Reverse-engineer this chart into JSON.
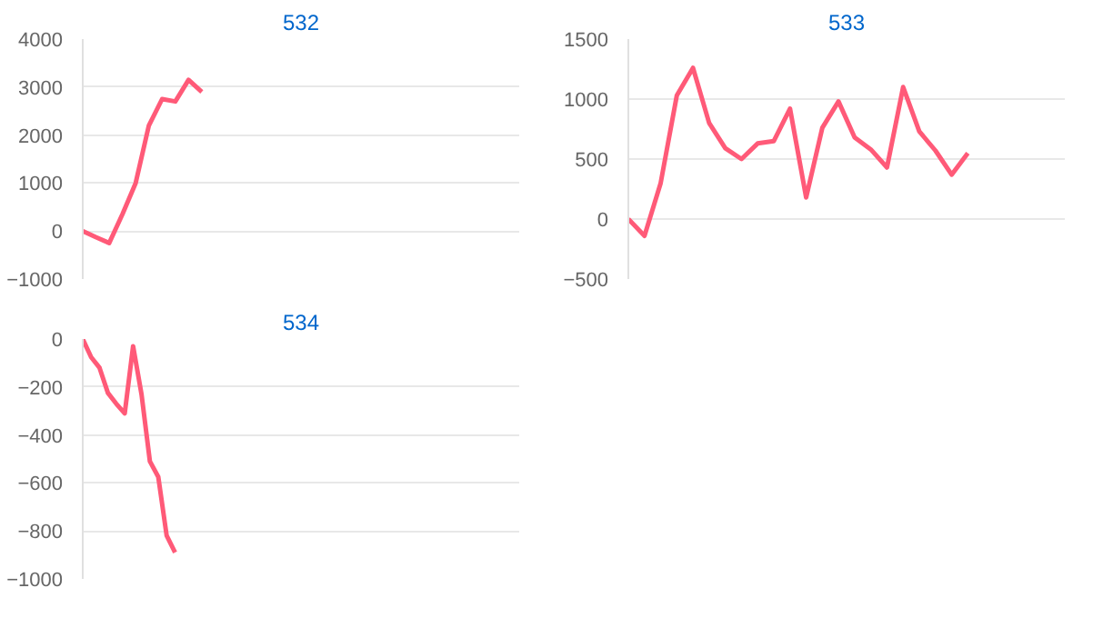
{
  "chart_data": [
    {
      "type": "line",
      "title": "532",
      "categories": [
        null,
        null,
        null,
        null,
        null,
        null,
        null,
        null,
        null,
        null,
        null,
        null,
        null,
        null,
        null,
        null,
        null,
        null,
        null,
        null,
        null,
        null,
        null,
        null,
        null,
        null,
        null,
        null,
        null,
        null,
        null,
        null,
        null,
        null
      ],
      "series": [
        {
          "color": "#ff5a78",
          "values": [
            0,
            -130,
            -250,
            350,
            1000,
            2200,
            2750,
            2700,
            3150,
            2900,
            null,
            null,
            null,
            null,
            null,
            null,
            null,
            null,
            null,
            null,
            null,
            null,
            null,
            null,
            null,
            null,
            null,
            null,
            null,
            null,
            null,
            null,
            null,
            null
          ]
        }
      ],
      "ylim": [
        -1000,
        4000
      ],
      "yticks": [
        -1000,
        0,
        1000,
        2000,
        3000,
        4000
      ],
      "grid": "y",
      "tick_labels": "y"
    },
    {
      "type": "line",
      "title": "533",
      "categories": [
        null,
        null,
        null,
        null,
        null,
        null,
        null,
        null,
        null,
        null,
        null,
        null,
        null,
        null,
        null,
        null,
        null,
        null,
        null,
        null,
        null,
        null,
        null,
        null,
        null,
        null,
        null,
        null
      ],
      "series": [
        {
          "color": "#ff5a78",
          "values": [
            0,
            -140,
            300,
            1030,
            1260,
            800,
            590,
            500,
            630,
            650,
            920,
            180,
            760,
            980,
            680,
            580,
            430,
            1100,
            730,
            570,
            370,
            550,
            null,
            null,
            null,
            null,
            null,
            null
          ]
        }
      ],
      "ylim": [
        -500,
        1500
      ],
      "yticks": [
        -500,
        0,
        500,
        1000,
        1500
      ],
      "grid": "y",
      "tick_labels": "y"
    },
    {
      "type": "line",
      "title": "534",
      "categories": [
        null,
        null,
        null,
        null,
        null,
        null,
        null,
        null,
        null,
        null,
        null,
        null,
        null,
        null,
        null,
        null,
        null,
        null,
        null,
        null,
        null,
        null,
        null,
        null,
        null,
        null,
        null,
        null,
        null,
        null,
        null,
        null,
        null,
        null,
        null,
        null,
        null,
        null,
        null,
        null,
        null,
        null,
        null,
        null,
        null,
        null,
        null,
        null,
        null,
        null,
        null,
        null,
        null
      ],
      "series": [
        {
          "color": "#ff5a78",
          "values": [
            0,
            -76,
            -120,
            -225,
            -270,
            -310,
            -30,
            -230,
            -510,
            -575,
            -820,
            -890,
            null,
            null,
            null,
            null,
            null,
            null,
            null,
            null,
            null,
            null,
            null,
            null,
            null,
            null,
            null,
            null,
            null,
            null,
            null,
            null,
            null,
            null,
            null,
            null,
            null,
            null,
            null,
            null,
            null,
            null,
            null,
            null,
            null,
            null,
            null,
            null,
            null,
            null,
            null,
            null,
            null
          ]
        }
      ],
      "ylim": [
        -1000,
        0
      ],
      "yticks": [
        -1000,
        -800,
        -600,
        -400,
        -200,
        0
      ],
      "grid": "y",
      "tick_labels": "y"
    }
  ]
}
